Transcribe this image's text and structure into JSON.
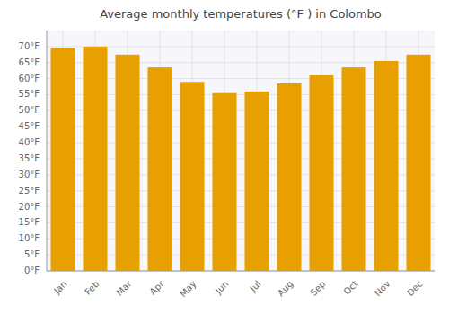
{
  "chart_data": {
    "type": "bar",
    "title": "Average monthly temperatures (°F ) in Colombo",
    "categories": [
      "Jan",
      "Feb",
      "Mar",
      "Apr",
      "May",
      "Jun",
      "Jul",
      "Aug",
      "Sep",
      "Oct",
      "Nov",
      "Dec"
    ],
    "values": [
      69.5,
      70.0,
      67.5,
      63.5,
      59.0,
      55.5,
      56.0,
      58.5,
      61.0,
      63.5,
      65.5,
      67.5
    ],
    "color": "#E8A000",
    "ylim": [
      0,
      75
    ],
    "yticks": [
      {
        "value": 0,
        "label": "0°F"
      },
      {
        "value": 5,
        "label": "5°F"
      },
      {
        "value": 10,
        "label": "10°F"
      },
      {
        "value": 15,
        "label": "15°F"
      },
      {
        "value": 20,
        "label": "20°F"
      },
      {
        "value": 25,
        "label": "25°F"
      },
      {
        "value": 30,
        "label": "30°F"
      },
      {
        "value": 35,
        "label": "35°F"
      },
      {
        "value": 40,
        "label": "40°F"
      },
      {
        "value": 45,
        "label": "45°F"
      },
      {
        "value": 50,
        "label": "50°F"
      },
      {
        "value": 55,
        "label": "55°F"
      },
      {
        "value": 60,
        "label": "60°F"
      },
      {
        "value": 65,
        "label": "65°F"
      },
      {
        "value": 70,
        "label": "70°F"
      }
    ],
    "grid": true
  }
}
